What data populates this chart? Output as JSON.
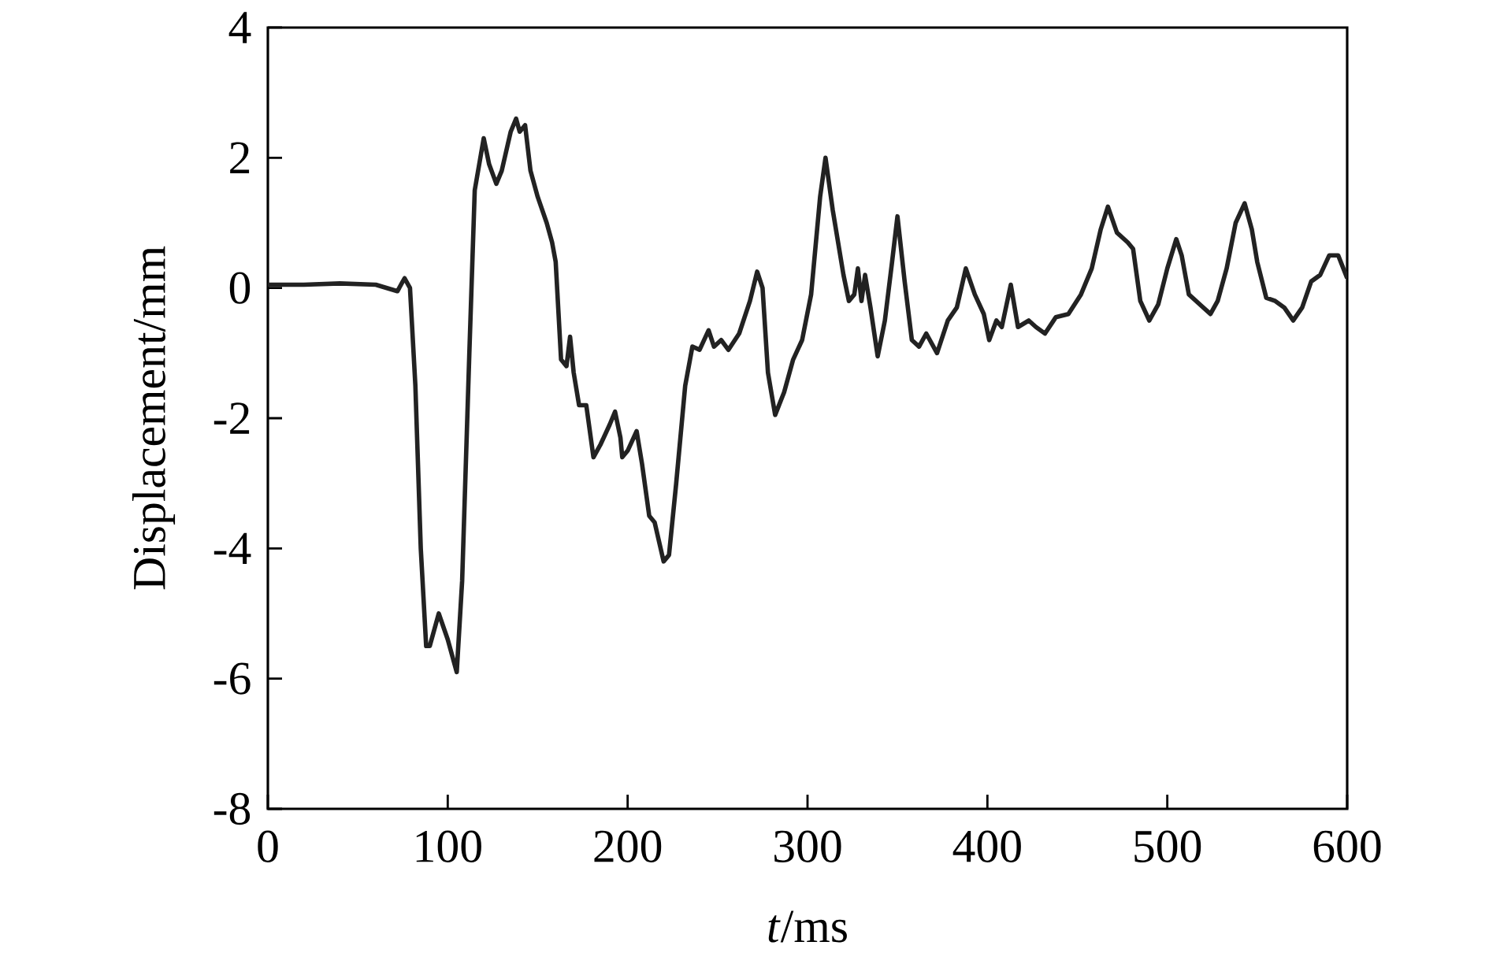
{
  "chart_data": {
    "type": "line",
    "xlabel": "*t*/ms",
    "ylabel": "Displacement/mm",
    "xlim": [
      0,
      600
    ],
    "ylim": [
      -8,
      4
    ],
    "xticks": [
      0,
      100,
      200,
      300,
      400,
      500,
      600
    ],
    "yticks": [
      -8,
      -6,
      -4,
      -2,
      0,
      2,
      4
    ],
    "grid": false,
    "marker": "none",
    "line_style": "solid",
    "series": [
      {
        "color": "#222222",
        "x": [
          0,
          20,
          40,
          60,
          72,
          76,
          79,
          82,
          85,
          88,
          90,
          95,
          100,
          105,
          108,
          112,
          115,
          120,
          123,
          127,
          130,
          135,
          138,
          140,
          143,
          146,
          150,
          155,
          158,
          160,
          163,
          166,
          168,
          170,
          173,
          177,
          181,
          185,
          190,
          193,
          196,
          197,
          200,
          205,
          208,
          212,
          215,
          220,
          223,
          227,
          232,
          236,
          240,
          245,
          248,
          252,
          256,
          262,
          268,
          272,
          275,
          278,
          282,
          287,
          292,
          297,
          302,
          307,
          310,
          314,
          320,
          323,
          326,
          328,
          330,
          332,
          335,
          339,
          343,
          347,
          350,
          354,
          358,
          362,
          366,
          372,
          378,
          383,
          388,
          393,
          398,
          401,
          405,
          408,
          413,
          417,
          423,
          427,
          432,
          438,
          445,
          452,
          458,
          463,
          467,
          472,
          478,
          481,
          485,
          490,
          495,
          500,
          505,
          508,
          512,
          518,
          524,
          528,
          533,
          538,
          543,
          547,
          550,
          555,
          560,
          565,
          570,
          575,
          580,
          585,
          590,
          595,
          600
        ],
        "values": [
          0.05,
          0.05,
          0.07,
          0.05,
          -0.05,
          0.15,
          0,
          -1.5,
          -4,
          -5.5,
          -5.5,
          -5.0,
          -5.4,
          -5.9,
          -4.5,
          -1,
          1.5,
          2.3,
          1.9,
          1.6,
          1.8,
          2.4,
          2.6,
          2.4,
          2.5,
          1.8,
          1.4,
          1.0,
          0.7,
          0.4,
          -1.1,
          -1.2,
          -0.75,
          -1.3,
          -1.8,
          -1.8,
          -2.6,
          -2.4,
          -2.1,
          -1.9,
          -2.3,
          -2.6,
          -2.5,
          -2.2,
          -2.7,
          -3.5,
          -3.6,
          -4.2,
          -4.1,
          -3,
          -1.5,
          -0.9,
          -0.95,
          -0.65,
          -0.9,
          -0.8,
          -0.95,
          -0.7,
          -0.2,
          0.25,
          0,
          -1.3,
          -1.95,
          -1.6,
          -1.1,
          -0.8,
          -0.1,
          1.4,
          2.0,
          1.2,
          0.2,
          -0.2,
          -0.1,
          0.3,
          -0.2,
          0.2,
          -0.3,
          -1.05,
          -0.5,
          0.4,
          1.1,
          0.1,
          -0.8,
          -0.9,
          -0.7,
          -1.0,
          -0.5,
          -0.3,
          0.3,
          -0.1,
          -0.4,
          -0.8,
          -0.5,
          -0.6,
          0.05,
          -0.6,
          -0.5,
          -0.6,
          -0.7,
          -0.45,
          -0.4,
          -0.1,
          0.3,
          0.9,
          1.25,
          0.85,
          0.7,
          0.6,
          -0.2,
          -0.5,
          -0.25,
          0.3,
          0.75,
          0.5,
          -0.1,
          -0.25,
          -0.4,
          -0.2,
          0.3,
          1.0,
          1.3,
          0.9,
          0.4,
          -0.15,
          -0.2,
          -0.3,
          -0.5,
          -0.3,
          0.1,
          0.2,
          0.5,
          0.5,
          0.15
        ]
      }
    ]
  }
}
